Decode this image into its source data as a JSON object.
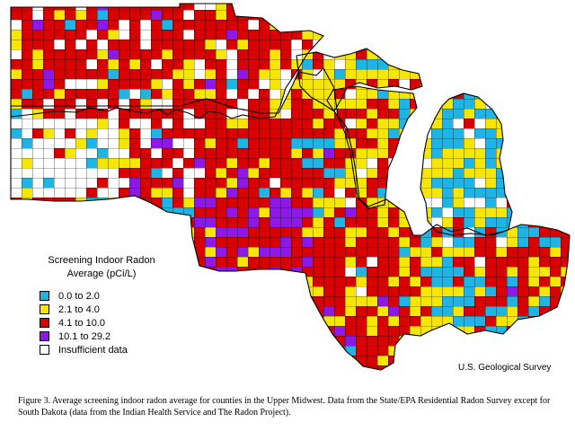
{
  "legend": {
    "title_line1": "Screening Indoor Radon",
    "title_line2": "Average (pCi/L)",
    "items": [
      {
        "label": "0.0 to 2.0",
        "color": "#1eb4e6"
      },
      {
        "label": "2.1 to 4.0",
        "color": "#f7e600"
      },
      {
        "label": "4.1 to 10.0",
        "color": "#d80000"
      },
      {
        "label": "10.1 to 29.2",
        "color": "#8c19e8"
      },
      {
        "label": "Insufficient data",
        "color": "#ffffff"
      }
    ]
  },
  "source": "U.S. Geological Survey",
  "caption": "Figure 3.  Average screening indoor radon average for counties in the Upper Midwest.  Data from the State/EPA Residential Radon Survey except for South Dakota (data from the Indian Health Service and The Radon Project).",
  "colors": {
    "low": "#1eb4e6",
    "moderate": "#f7e600",
    "high": "#d80000",
    "very_high": "#8c19e8",
    "none": "#ffffff",
    "outline": "#000000"
  }
}
